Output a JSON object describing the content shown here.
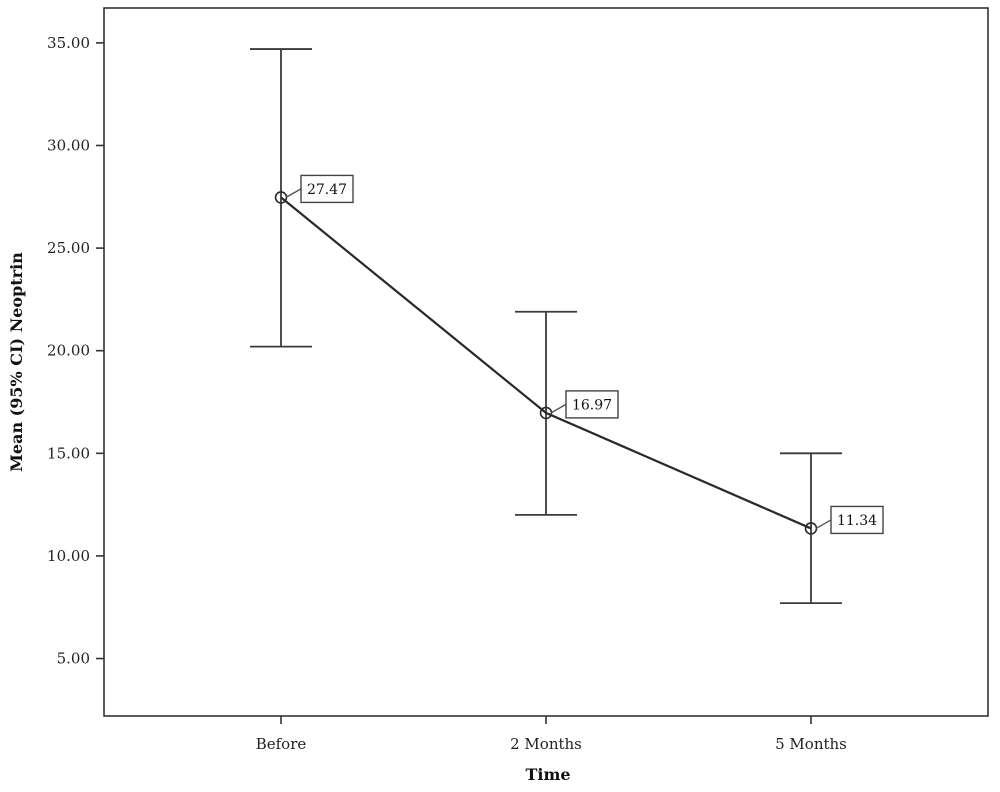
{
  "chart_data": {
    "type": "line",
    "error_bars": "95% CI",
    "categories": [
      "Before",
      "2 Months",
      "5 Months"
    ],
    "series": [
      {
        "values": [
          27.47,
          16.97,
          11.34
        ],
        "ci_lower": [
          20.2,
          12.0,
          7.7
        ],
        "ci_upper": [
          34.7,
          21.9,
          15.0
        ],
        "data_labels": [
          "27.47",
          "16.97",
          "11.34"
        ]
      }
    ],
    "xlabel": "Time",
    "ylabel": "Mean (95% CI) Neoptrin",
    "ylim": [
      2.2,
      36.7
    ],
    "yticks": [
      5,
      10,
      15,
      20,
      25,
      30,
      35
    ],
    "ytick_labels": [
      "5.00",
      "10.00",
      "15.00",
      "20.00",
      "25.00",
      "30.00",
      "35.00"
    ],
    "grid": false,
    "legend": "none"
  }
}
